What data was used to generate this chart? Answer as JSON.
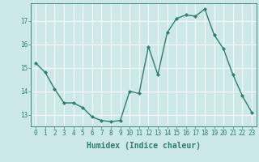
{
  "x": [
    0,
    1,
    2,
    3,
    4,
    5,
    6,
    7,
    8,
    9,
    10,
    11,
    12,
    13,
    14,
    15,
    16,
    17,
    18,
    19,
    20,
    21,
    22,
    23
  ],
  "y": [
    15.2,
    14.8,
    14.1,
    13.5,
    13.5,
    13.3,
    12.9,
    12.75,
    12.7,
    12.75,
    14.0,
    13.9,
    15.9,
    14.7,
    16.5,
    17.1,
    17.25,
    17.2,
    17.5,
    16.4,
    15.8,
    14.7,
    13.8,
    13.1
  ],
  "line_color": "#2e7d6e",
  "marker": "D",
  "marker_size": 2.2,
  "bg_color": "#cce8e8",
  "grid_color": "#ffffff",
  "xlabel": "Humidex (Indice chaleur)",
  "xlim": [
    -0.5,
    23.5
  ],
  "ylim": [
    12.5,
    17.75
  ],
  "yticks": [
    13,
    14,
    15,
    16,
    17
  ],
  "xticks": [
    0,
    1,
    2,
    3,
    4,
    5,
    6,
    7,
    8,
    9,
    10,
    11,
    12,
    13,
    14,
    15,
    16,
    17,
    18,
    19,
    20,
    21,
    22,
    23
  ],
  "xtick_labels": [
    "0",
    "1",
    "2",
    "3",
    "4",
    "5",
    "6",
    "7",
    "8",
    "9",
    "10",
    "11",
    "12",
    "13",
    "14",
    "15",
    "16",
    "17",
    "18",
    "19",
    "20",
    "21",
    "22",
    "23"
  ],
  "tick_fontsize": 5.5,
  "xlabel_fontsize": 7,
  "axis_color": "#2e7d6e",
  "linewidth": 1.0
}
